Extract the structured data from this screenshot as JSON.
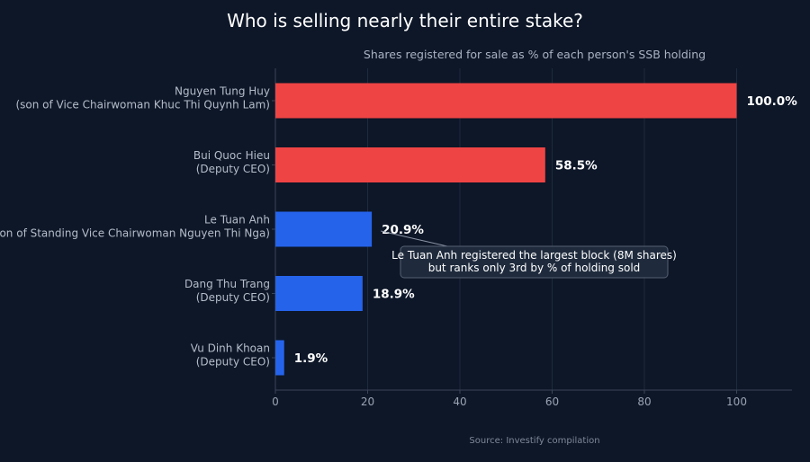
{
  "colors": {
    "background": "#0d1728",
    "high": "#ef4444",
    "low": "#2563eb",
    "grid": "#1e2a3d",
    "axis": "#3a4558"
  },
  "chart_data": {
    "type": "bar",
    "orientation": "horizontal",
    "title": "Who is selling nearly their entire stake?",
    "subtitle": "Shares registered for sale as % of each person's SSB holding",
    "categories": [
      [
        "Nguyen Tung Huy",
        "(son of Vice Chairwoman Khuc Thi Quynh Lam)"
      ],
      [
        "Bui Quoc Hieu",
        "(Deputy CEO)"
      ],
      [
        "Le Tuan Anh",
        "(son of Standing Vice Chairwoman Nguyen Thi Nga)"
      ],
      [
        "Dang Thu Trang",
        "(Deputy CEO)"
      ],
      [
        "Vu Dinh Khoan",
        "(Deputy CEO)"
      ]
    ],
    "values": [
      100.0,
      58.5,
      20.9,
      18.9,
      1.9
    ],
    "value_labels": [
      "100.0%",
      "58.5%",
      "20.9%",
      "18.9%",
      "1.9%"
    ],
    "bar_colors": [
      "#ef4444",
      "#ef4444",
      "#2563eb",
      "#2563eb",
      "#2563eb"
    ],
    "xlim": [
      0,
      112
    ],
    "xticks": [
      0,
      20,
      40,
      60,
      80,
      100
    ],
    "grid": true,
    "annotation": {
      "lines": [
        "Le Tuan Anh registered the largest block (8M shares)",
        "but ranks only 3rd by % of holding sold"
      ],
      "target_index": 2
    },
    "source": "Source: Investify compilation"
  }
}
